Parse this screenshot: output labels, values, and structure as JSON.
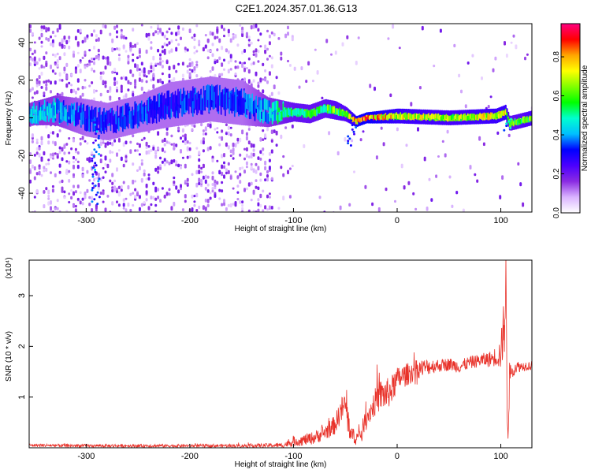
{
  "title": "C2E1.2024.357.01.36.G13",
  "chart_data": [
    {
      "type": "heatmap",
      "xlabel": "Height of straight line (km)",
      "ylabel": "Frequency (Hz)",
      "xlim": [
        -355,
        130
      ],
      "ylim": [
        -50,
        50
      ],
      "xticks": [
        -300,
        -200,
        -100,
        0,
        100
      ],
      "yticks": [
        -40,
        -20,
        0,
        20,
        40
      ],
      "colorbar": {
        "label": "Normalized spectral amplitude",
        "range": [
          0,
          0.97
        ],
        "ticks": [
          0.0,
          0.2,
          0.4,
          0.6,
          0.8
        ],
        "tick_labels": [
          "0.0",
          "0.2",
          "0.4",
          "0.6",
          "0.8"
        ],
        "colors": [
          "#ffffff",
          "#d9b3ff",
          "#8a2be2",
          "#4b00ff",
          "#0000ff",
          "#00bfff",
          "#00ffd0",
          "#00ff00",
          "#80ff00",
          "#ffff00",
          "#ffa500",
          "#ff0000",
          "#ff0080"
        ]
      },
      "ridge": [
        {
          "x": -355,
          "y": 2,
          "width": 6,
          "amp": 0.45
        },
        {
          "x": -330,
          "y": 4,
          "width": 8,
          "amp": 0.45
        },
        {
          "x": -300,
          "y": 0,
          "width": 10,
          "amp": 0.35
        },
        {
          "x": -280,
          "y": -2,
          "width": 10,
          "amp": 0.35
        },
        {
          "x": -250,
          "y": 2,
          "width": 10,
          "amp": 0.35
        },
        {
          "x": -220,
          "y": 7,
          "width": 12,
          "amp": 0.35
        },
        {
          "x": -180,
          "y": 10,
          "width": 12,
          "amp": 0.35
        },
        {
          "x": -150,
          "y": 8,
          "width": 12,
          "amp": 0.35
        },
        {
          "x": -125,
          "y": 3,
          "width": 8,
          "amp": 0.45
        },
        {
          "x": -100,
          "y": 3,
          "width": 5,
          "amp": 0.6
        },
        {
          "x": -85,
          "y": 2,
          "width": 5,
          "amp": 0.6
        },
        {
          "x": -70,
          "y": 5,
          "width": 5,
          "amp": 0.6
        },
        {
          "x": -60,
          "y": 4,
          "width": 5,
          "amp": 0.65
        },
        {
          "x": -50,
          "y": 2,
          "width": 4,
          "amp": 0.65
        },
        {
          "x": -40,
          "y": -2,
          "width": 3,
          "amp": 0.85
        },
        {
          "x": -30,
          "y": 0,
          "width": 3,
          "amp": 0.9
        },
        {
          "x": 0,
          "y": 1,
          "width": 4,
          "amp": 0.75
        },
        {
          "x": 50,
          "y": 0,
          "width": 4,
          "amp": 0.7
        },
        {
          "x": 95,
          "y": 1,
          "width": 4,
          "amp": 0.75
        },
        {
          "x": 104,
          "y": 3,
          "width": 4,
          "amp": 0.75
        },
        {
          "x": 108,
          "y": -3,
          "width": 4,
          "amp": 0.6
        },
        {
          "x": 130,
          "y": 0,
          "width": 4,
          "amp": 0.7
        }
      ],
      "features": [
        {
          "x": -292,
          "y0": 0,
          "y1": -45,
          "amp": 0.4
        },
        {
          "x": -45,
          "y0": 0,
          "y1": -14,
          "amp": 0.35
        },
        {
          "x": 106,
          "y0": 2,
          "y1": -6,
          "amp": 0.45
        }
      ]
    },
    {
      "type": "line",
      "xlabel": "Height of straight line (km)",
      "ylabel": "SNR (10 * v/v)",
      "yscale_label": "(x10⁴)",
      "xlim": [
        -355,
        130
      ],
      "ylim": [
        0,
        3.7
      ],
      "xticks": [
        -300,
        -200,
        -100,
        0,
        100
      ],
      "yticks": [
        1,
        2,
        3
      ],
      "color": "#e8322a",
      "x": [
        -355,
        -300,
        -250,
        -200,
        -150,
        -110,
        -100,
        -90,
        -80,
        -70,
        -60,
        -55,
        -50,
        -48,
        -45,
        -40,
        -35,
        -30,
        -25,
        -20,
        -15,
        -10,
        -5,
        0,
        10,
        20,
        30,
        40,
        50,
        60,
        70,
        80,
        90,
        95,
        100,
        103,
        105,
        106,
        107,
        108,
        110,
        115,
        120,
        125,
        130
      ],
      "y": [
        0.05,
        0.04,
        0.04,
        0.04,
        0.04,
        0.05,
        0.12,
        0.15,
        0.2,
        0.3,
        0.45,
        0.7,
        0.85,
        0.6,
        0.3,
        0.18,
        0.28,
        0.6,
        0.75,
        0.95,
        1.05,
        1.05,
        1.15,
        1.35,
        1.45,
        1.55,
        1.6,
        1.62,
        1.65,
        1.6,
        1.68,
        1.72,
        1.75,
        1.8,
        1.85,
        2.4,
        3.0,
        1.2,
        0.4,
        1.2,
        1.55,
        1.6,
        1.6,
        1.62,
        1.62
      ],
      "noise": [
        0.02,
        0.02,
        0.02,
        0.02,
        0.02,
        0.03,
        0.06,
        0.07,
        0.08,
        0.1,
        0.12,
        0.15,
        0.2,
        0.2,
        0.12,
        0.08,
        0.1,
        0.12,
        0.15,
        0.18,
        0.2,
        0.2,
        0.18,
        0.15,
        0.14,
        0.12,
        0.1,
        0.08,
        0.08,
        0.08,
        0.08,
        0.08,
        0.1,
        0.12,
        0.2,
        0.4,
        0.6,
        0.5,
        0.2,
        0.3,
        0.12,
        0.08,
        0.06,
        0.06,
        0.06
      ]
    }
  ]
}
